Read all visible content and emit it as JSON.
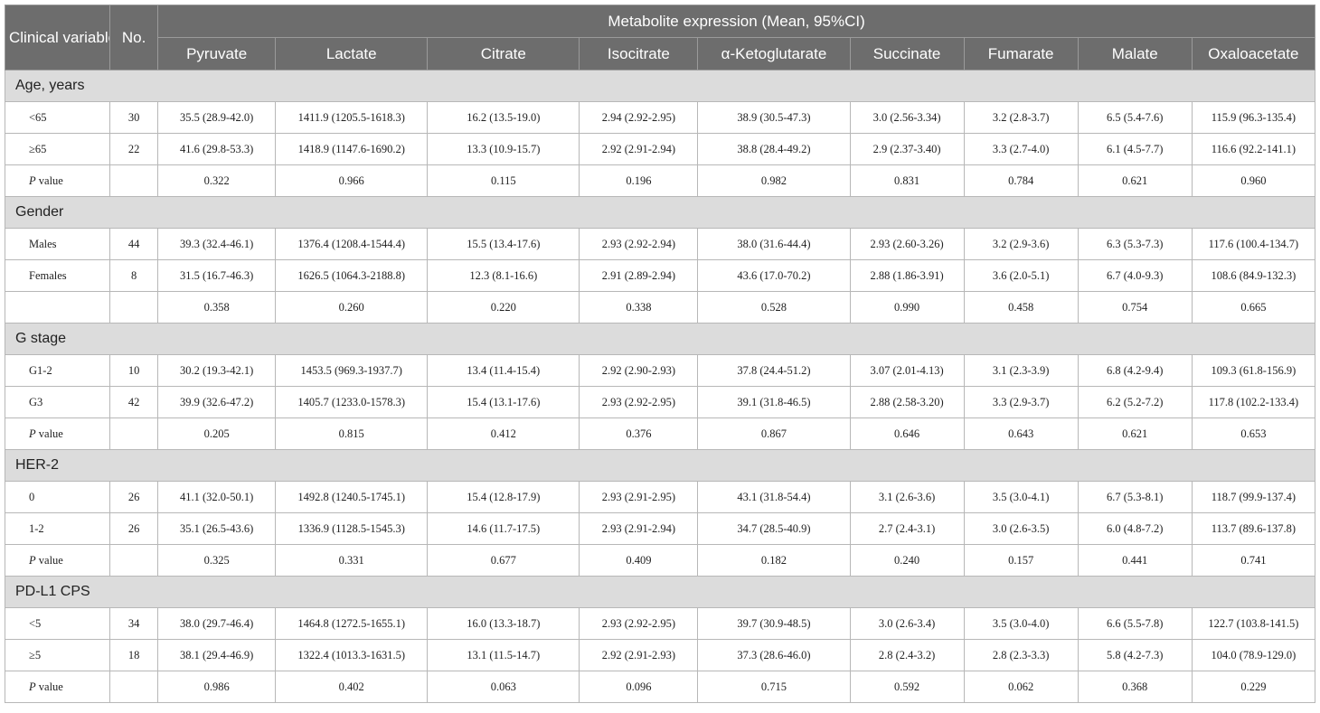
{
  "header": {
    "variables_label": "Clinical variables",
    "no_label": "No.",
    "group_label": "Metabolite expression (Mean, 95%CI)",
    "metabolites": [
      "Pyruvate",
      "Lactate",
      "Citrate",
      "Isocitrate",
      "α-Ketoglutarate",
      "Succinate",
      "Fumarate",
      "Malate",
      "Oxaloacetate"
    ]
  },
  "sections": [
    {
      "title": "Age, years",
      "rows": [
        {
          "label": "<65",
          "n": "30",
          "values": [
            "35.5 (28.9-42.0)",
            "1411.9 (1205.5-1618.3)",
            "16.2 (13.5-19.0)",
            "2.94 (2.92-2.95)",
            "38.9 (30.5-47.3)",
            "3.0 (2.56-3.34)",
            "3.2 (2.8-3.7)",
            "6.5 (5.4-7.6)",
            "115.9 (96.3-135.4)"
          ]
        },
        {
          "label": "≥65",
          "n": "22",
          "values": [
            "41.6 (29.8-53.3)",
            "1418.9 (1147.6-1690.2)",
            "13.3 (10.9-15.7)",
            "2.92 (2.91-2.94)",
            "38.8 (28.4-49.2)",
            "2.9 (2.37-3.40)",
            "3.3 (2.7-4.0)",
            "6.1 (4.5-7.7)",
            "116.6 (92.2-141.1)"
          ]
        },
        {
          "label_italic": "P",
          "label": " value",
          "n": "",
          "values": [
            "0.322",
            "0.966",
            "0.115",
            "0.196",
            "0.982",
            "0.831",
            "0.784",
            "0.621",
            "0.960"
          ]
        }
      ]
    },
    {
      "title": "Gender",
      "rows": [
        {
          "label": "Males",
          "n": "44",
          "values": [
            "39.3 (32.4-46.1)",
            "1376.4 (1208.4-1544.4)",
            "15.5 (13.4-17.6)",
            "2.93 (2.92-2.94)",
            "38.0 (31.6-44.4)",
            "2.93 (2.60-3.26)",
            "3.2 (2.9-3.6)",
            "6.3 (5.3-7.3)",
            "117.6 (100.4-134.7)"
          ]
        },
        {
          "label": "Females",
          "n": "8",
          "values": [
            "31.5 (16.7-46.3)",
            "1626.5 (1064.3-2188.8)",
            "12.3 (8.1-16.6)",
            "2.91 (2.89-2.94)",
            "43.6 (17.0-70.2)",
            "2.88 (1.86-3.91)",
            "3.6 (2.0-5.1)",
            "6.7 (4.0-9.3)",
            "108.6 (84.9-132.3)"
          ]
        },
        {
          "label": "",
          "n": "",
          "values": [
            "0.358",
            "0.260",
            "0.220",
            "0.338",
            "0.528",
            "0.990",
            "0.458",
            "0.754",
            "0.665"
          ]
        }
      ]
    },
    {
      "title": "G stage",
      "rows": [
        {
          "label": "G1-2",
          "n": "10",
          "values": [
            "30.2 (19.3-42.1)",
            "1453.5 (969.3-1937.7)",
            "13.4 (11.4-15.4)",
            "2.92 (2.90-2.93)",
            "37.8 (24.4-51.2)",
            "3.07 (2.01-4.13)",
            "3.1 (2.3-3.9)",
            "6.8 (4.2-9.4)",
            "109.3 (61.8-156.9)"
          ]
        },
        {
          "label": "G3",
          "n": "42",
          "values": [
            "39.9 (32.6-47.2)",
            "1405.7 (1233.0-1578.3)",
            "15.4 (13.1-17.6)",
            "2.93 (2.92-2.95)",
            "39.1 (31.8-46.5)",
            "2.88 (2.58-3.20)",
            "3.3 (2.9-3.7)",
            "6.2 (5.2-7.2)",
            "117.8 (102.2-133.4)"
          ]
        },
        {
          "label_italic": "P",
          "label": " value",
          "n": "",
          "values": [
            "0.205",
            "0.815",
            "0.412",
            "0.376",
            "0.867",
            "0.646",
            "0.643",
            "0.621",
            "0.653"
          ]
        }
      ]
    },
    {
      "title": "HER-2",
      "rows": [
        {
          "label": "0",
          "n": "26",
          "values": [
            "41.1 (32.0-50.1)",
            "1492.8 (1240.5-1745.1)",
            "15.4 (12.8-17.9)",
            "2.93 (2.91-2.95)",
            "43.1 (31.8-54.4)",
            "3.1 (2.6-3.6)",
            "3.5 (3.0-4.1)",
            "6.7 (5.3-8.1)",
            "118.7 (99.9-137.4)"
          ]
        },
        {
          "label": "1-2",
          "n": "26",
          "values": [
            "35.1 (26.5-43.6)",
            "1336.9 (1128.5-1545.3)",
            "14.6 (11.7-17.5)",
            "2.93 (2.91-2.94)",
            "34.7 (28.5-40.9)",
            "2.7 (2.4-3.1)",
            "3.0 (2.6-3.5)",
            "6.0 (4.8-7.2)",
            "113.7 (89.6-137.8)"
          ]
        },
        {
          "label_italic": "P",
          "label": " value",
          "n": "",
          "values": [
            "0.325",
            "0.331",
            "0.677",
            "0.409",
            "0.182",
            "0.240",
            "0.157",
            "0.441",
            "0.741"
          ]
        }
      ]
    },
    {
      "title": "PD-L1 CPS",
      "rows": [
        {
          "label": "<5",
          "n": "34",
          "values": [
            "38.0 (29.7-46.4)",
            "1464.8 (1272.5-1655.1)",
            "16.0 (13.3-18.7)",
            "2.93 (2.92-2.95)",
            "39.7 (30.9-48.5)",
            "3.0 (2.6-3.4)",
            "3.5 (3.0-4.0)",
            "6.6 (5.5-7.8)",
            "122.7 (103.8-141.5)"
          ]
        },
        {
          "label": "≥5",
          "n": "18",
          "values": [
            "38.1 (29.4-46.9)",
            "1322.4 (1013.3-1631.5)",
            "13.1 (11.5-14.7)",
            "2.92 (2.91-2.93)",
            "37.3 (28.6-46.0)",
            "2.8 (2.4-3.2)",
            "2.8 (2.3-3.3)",
            "5.8 (4.2-7.3)",
            "104.0 (78.9-129.0)"
          ]
        },
        {
          "label_italic": "P",
          "label": " value",
          "n": "",
          "values": [
            "0.986",
            "0.402",
            "0.063",
            "0.096",
            "0.715",
            "0.592",
            "0.062",
            "0.368",
            "0.229"
          ]
        }
      ]
    }
  ]
}
